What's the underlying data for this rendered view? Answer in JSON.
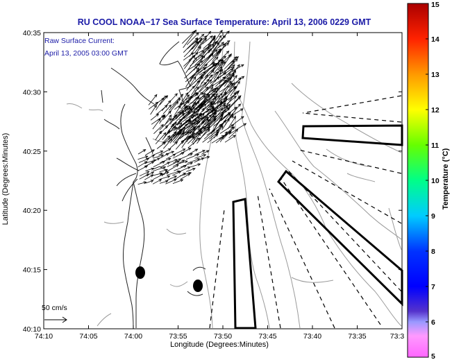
{
  "title": "RU COOL  NOAA−17  Sea Surface Temperature:  April 13, 2006 0229 GMT",
  "annotation": {
    "line1": "Raw Surface Current:",
    "line2": "April 13, 2005 03:00 GMT"
  },
  "scale_label": "50 cm/s",
  "axes": {
    "xlabel": "Longitude (Degrees:Minutes)",
    "ylabel": "Latitude (Degrees:Minutes)",
    "x_ticks": [
      "74:10",
      "74:05",
      "74:00",
      "73:55",
      "73:50",
      "73:45",
      "73:40",
      "73:35",
      "73:3"
    ],
    "y_ticks": [
      "40:35",
      "40:30",
      "40:25",
      "40:20",
      "40:15",
      "40:10"
    ]
  },
  "colorbar": {
    "label": "Temperature (°C)",
    "ticks": [
      "15",
      "14",
      "13",
      "12",
      "11",
      "10",
      "9",
      "8",
      "7",
      "6",
      "5"
    ],
    "min": 5,
    "max": 15
  },
  "colors": {
    "title": "#1a1aa6",
    "annotation": "#1a1aa6",
    "frame": "#000000",
    "contour": "#9a9a9a"
  }
}
